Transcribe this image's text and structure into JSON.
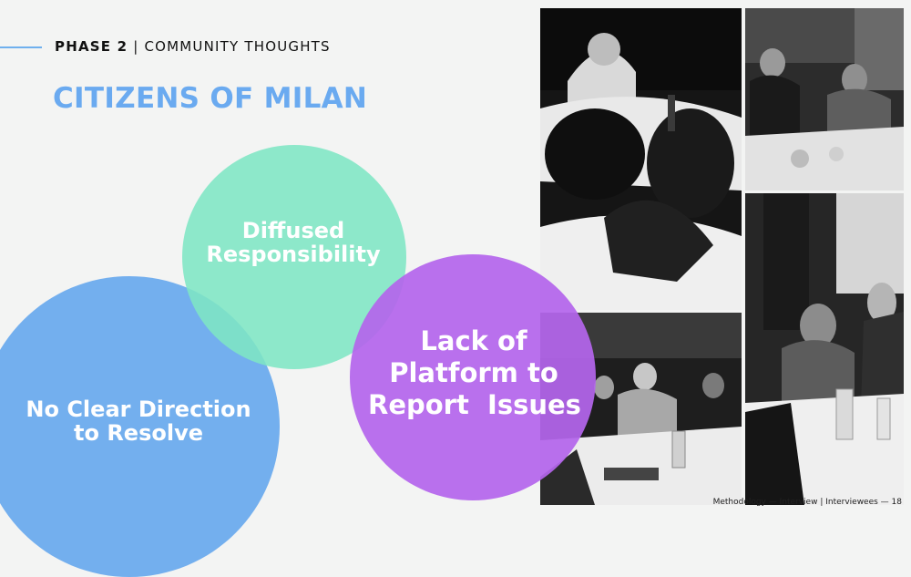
{
  "header": {
    "phase_label": "PHASE 2",
    "separator": "|",
    "section_label": "COMMUNITY THOUGHTS"
  },
  "title": "CITIZENS OF MILAN",
  "circles": [
    {
      "lines": [
        "No Clear Direction",
        "to Resolve"
      ],
      "color": "#68a8ee"
    },
    {
      "lines": [
        "Diffused",
        "Responsibility"
      ],
      "color": "#7ee6c4"
    },
    {
      "lines": [
        "Lack of",
        "Platform to",
        "Report  Issues"
      ],
      "color": "#b465ec"
    }
  ],
  "photos": [
    {
      "icon": "photo-interview-dinner-table"
    },
    {
      "icon": "photo-interview-pair-seated"
    },
    {
      "icon": "photo-interview-group-restaurant"
    },
    {
      "icon": "photo-interview-woman-listening"
    }
  ],
  "footer": "Methodology — Interview |  Interviewees — 18"
}
